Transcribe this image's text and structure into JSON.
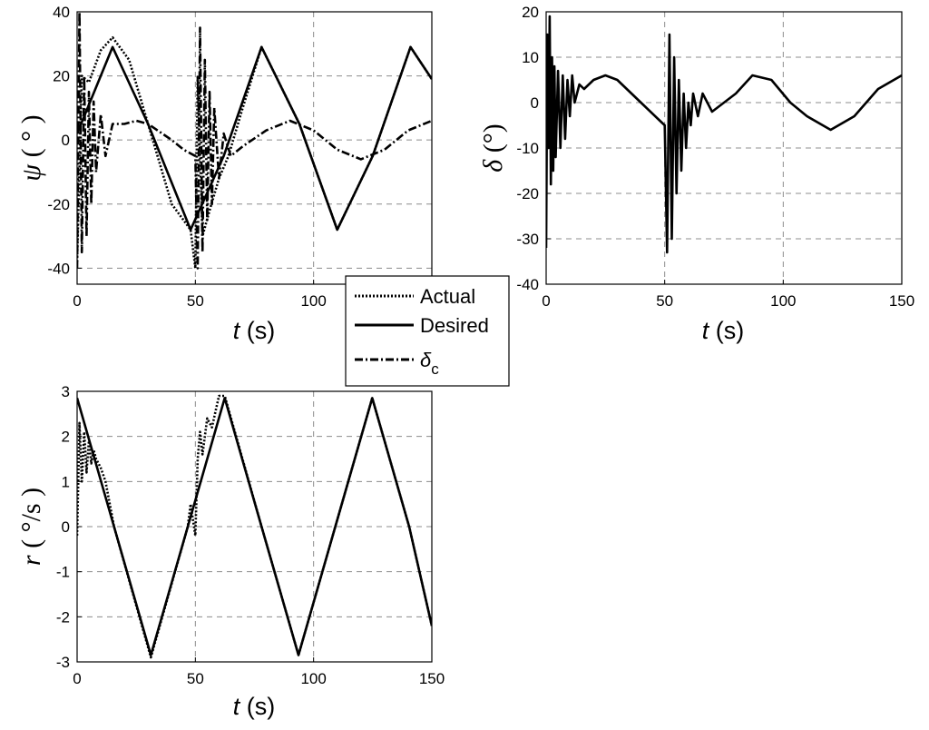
{
  "colors": {
    "line": "#000000",
    "grid": "#8c8c8c",
    "background": "#ffffff"
  },
  "legend": {
    "entries": [
      {
        "label": "Actual",
        "style": "dotted"
      },
      {
        "label": "Desired",
        "style": "solid"
      },
      {
        "label": "δ",
        "subscript": "c",
        "style": "dashdot"
      }
    ]
  },
  "chart_data": [
    {
      "id": "psi",
      "type": "line",
      "title": "",
      "xlabel": {
        "var": "t",
        "unit": " (s)"
      },
      "ylabel": {
        "var": "ψ",
        "unit": " ( ° )"
      },
      "xlim": [
        0,
        150
      ],
      "ylim": [
        -45,
        40
      ],
      "xticks": [
        0,
        50,
        100
      ],
      "xtick_labels": [
        "0",
        "50",
        "100"
      ],
      "yticks": [
        40,
        20,
        0,
        -20,
        -40
      ],
      "ytick_labels": [
        "40",
        "20",
        "0",
        "-20",
        "-40"
      ],
      "grid": true,
      "series": [
        {
          "name": "Desired",
          "style": "solid",
          "x": [
            0,
            15,
            30,
            48,
            62,
            78,
            94,
            110,
            125,
            141,
            150
          ],
          "y": [
            2,
            29,
            5,
            -28,
            -5,
            29,
            5,
            -28,
            -5,
            29,
            19
          ]
        },
        {
          "name": "Actual",
          "style": "dotted",
          "x": [
            0,
            2,
            5,
            10,
            15,
            22,
            30,
            40,
            48,
            50,
            51,
            53,
            56,
            60,
            64,
            70,
            78,
            94,
            110,
            125,
            141,
            150
          ],
          "y": [
            -38,
            20,
            18,
            28,
            32,
            25,
            5,
            -20,
            -28,
            -40,
            20,
            -30,
            -22,
            -12,
            -5,
            10,
            29,
            5,
            -28,
            -5,
            29,
            19
          ]
        },
        {
          "name": "δc",
          "style": "dashdot",
          "x": [
            0,
            1,
            2,
            3,
            4,
            5,
            6,
            7,
            8,
            10,
            12,
            15,
            20,
            25,
            30,
            40,
            45,
            50,
            51,
            52,
            53,
            54,
            55,
            56,
            57,
            58,
            60,
            62,
            65,
            70,
            80,
            90,
            100,
            110,
            120,
            130,
            140,
            150
          ],
          "y": [
            -40,
            40,
            -35,
            20,
            -30,
            15,
            -20,
            12,
            -10,
            8,
            -5,
            5,
            5,
            6,
            5,
            0,
            -3,
            -5,
            -40,
            35,
            -35,
            25,
            -25,
            15,
            -20,
            10,
            -12,
            2,
            -5,
            -2,
            3,
            6,
            3,
            -3,
            -6,
            -3,
            3,
            6
          ]
        }
      ]
    },
    {
      "id": "delta",
      "type": "line",
      "title": "",
      "xlabel": {
        "var": "t",
        "unit": " (s)"
      },
      "ylabel": {
        "var": "δ",
        "unit": " (°)"
      },
      "xlim": [
        0,
        150
      ],
      "ylim": [
        -40,
        20
      ],
      "xticks": [
        0,
        50,
        100,
        150
      ],
      "xtick_labels": [
        "0",
        "50",
        "100",
        "150"
      ],
      "yticks": [
        20,
        10,
        0,
        -10,
        -20,
        -30,
        -40
      ],
      "ytick_labels": [
        "20",
        "10",
        "0",
        "-10",
        "-20",
        "-30",
        "-40"
      ],
      "grid": true,
      "series": [
        {
          "name": "δ",
          "style": "solid",
          "x": [
            0,
            0.5,
            1,
            1.5,
            2,
            2.5,
            3,
            3.5,
            4,
            5,
            6,
            7,
            8,
            9,
            10,
            11,
            12,
            14,
            16,
            20,
            25,
            30,
            40,
            48,
            50,
            51,
            52,
            53,
            54,
            55,
            56,
            57,
            58,
            59,
            60,
            61,
            62,
            64,
            66,
            70,
            80,
            87,
            95,
            103,
            110,
            120,
            130,
            140,
            150
          ],
          "y": [
            -32,
            15,
            -10,
            19,
            -18,
            10,
            -15,
            8,
            -12,
            7,
            -10,
            6,
            -8,
            5,
            -3,
            6,
            0,
            4,
            3,
            5,
            6,
            5,
            0,
            -4,
            -5,
            -33,
            15,
            -30,
            10,
            -20,
            5,
            -15,
            2,
            -10,
            0,
            -5,
            2,
            -3,
            2,
            -2,
            2,
            6,
            5,
            0,
            -3,
            -6,
            -3,
            3,
            6
          ]
        }
      ]
    },
    {
      "id": "r",
      "type": "line",
      "title": "",
      "xlabel": {
        "var": "t",
        "unit": " (s)"
      },
      "ylabel": {
        "var": "r",
        "unit": " ( °/s )"
      },
      "xlim": [
        0,
        150
      ],
      "ylim": [
        -3,
        3
      ],
      "xticks": [
        0,
        50,
        100,
        150
      ],
      "xtick_labels": [
        "0",
        "50",
        "100",
        "150"
      ],
      "yticks": [
        3,
        2,
        1,
        0,
        -1,
        -2,
        -3
      ],
      "ytick_labels": [
        "3",
        "2",
        "1",
        "0",
        "-1",
        "-2",
        "-3"
      ],
      "grid": true,
      "series": [
        {
          "name": "Desired",
          "style": "solid",
          "x": [
            0,
            15.6,
            31.2,
            46.8,
            62.4,
            78,
            93.6,
            109.2,
            124.8,
            140.4,
            150
          ],
          "y": [
            2.85,
            0,
            -2.85,
            0,
            2.85,
            0,
            -2.85,
            0,
            2.85,
            0,
            -2.2
          ]
        },
        {
          "name": "Actual",
          "style": "dotted",
          "x": [
            0,
            1,
            2,
            3,
            4,
            5,
            6,
            7,
            8,
            10,
            12,
            15.6,
            31.2,
            46.8,
            48,
            50,
            51,
            52,
            53,
            55,
            57,
            60,
            62.4,
            78,
            93.6,
            109.2,
            124.8,
            140.4,
            150
          ],
          "y": [
            -0.2,
            2.3,
            1.0,
            2.1,
            1.2,
            1.9,
            1.4,
            1.7,
            1.5,
            1.3,
            1.0,
            0,
            -2.9,
            0,
            0.5,
            -0.2,
            1.5,
            2.1,
            1.6,
            2.4,
            2.2,
            2.9,
            2.9,
            0,
            -2.85,
            0,
            2.85,
            0,
            -2.2
          ]
        }
      ]
    }
  ]
}
